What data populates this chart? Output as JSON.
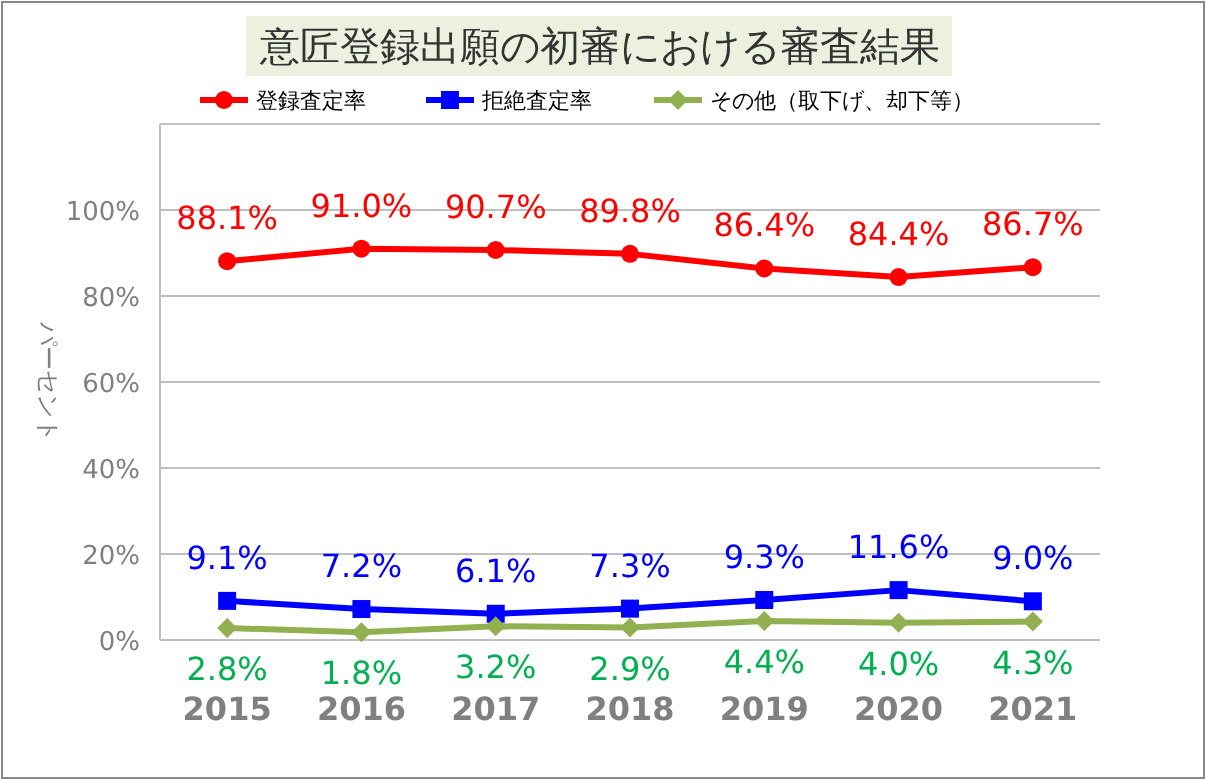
{
  "chart_data": {
    "type": "line",
    "title": "意匠登録出願の初審における審査結果",
    "ylabel": "パーセント",
    "categories": [
      "2015",
      "2016",
      "2017",
      "2018",
      "2019",
      "2020",
      "2021"
    ],
    "series": [
      {
        "name": "登録査定率",
        "color": "#ff0000",
        "marker": "circle",
        "values": [
          88.1,
          91.0,
          90.7,
          89.8,
          86.4,
          84.4,
          86.7
        ],
        "value_labels": [
          "88.1%",
          "91.0%",
          "90.7%",
          "89.8%",
          "86.4%",
          "84.4%",
          "86.7%"
        ]
      },
      {
        "name": "拒絶査定率",
        "color": "#0000ff",
        "marker": "square",
        "values": [
          9.1,
          7.2,
          6.1,
          7.3,
          9.3,
          11.6,
          9.0
        ],
        "value_labels": [
          "9.1%",
          "7.2%",
          "6.1%",
          "7.3%",
          "9.3%",
          "11.6%",
          "9.0%"
        ]
      },
      {
        "name": "その他（取下げ、却下等）",
        "color": "#92b050",
        "marker": "diamond",
        "values": [
          2.8,
          1.8,
          3.2,
          2.9,
          4.4,
          4.0,
          4.3
        ],
        "value_labels": [
          "2.8%",
          "1.8%",
          "3.2%",
          "2.9%",
          "4.4%",
          "4.0%",
          "4.3%"
        ]
      }
    ],
    "ylim": [
      0,
      120
    ],
    "yticks": [
      {
        "value": 0,
        "label": "0%"
      },
      {
        "value": 20,
        "label": "20%"
      },
      {
        "value": 40,
        "label": "40%"
      },
      {
        "value": 60,
        "label": "60%"
      },
      {
        "value": 80,
        "label": "80%"
      },
      {
        "value": 100,
        "label": "100%"
      },
      {
        "value": 120,
        "label": null
      }
    ],
    "grid": "y",
    "legend": "top"
  }
}
